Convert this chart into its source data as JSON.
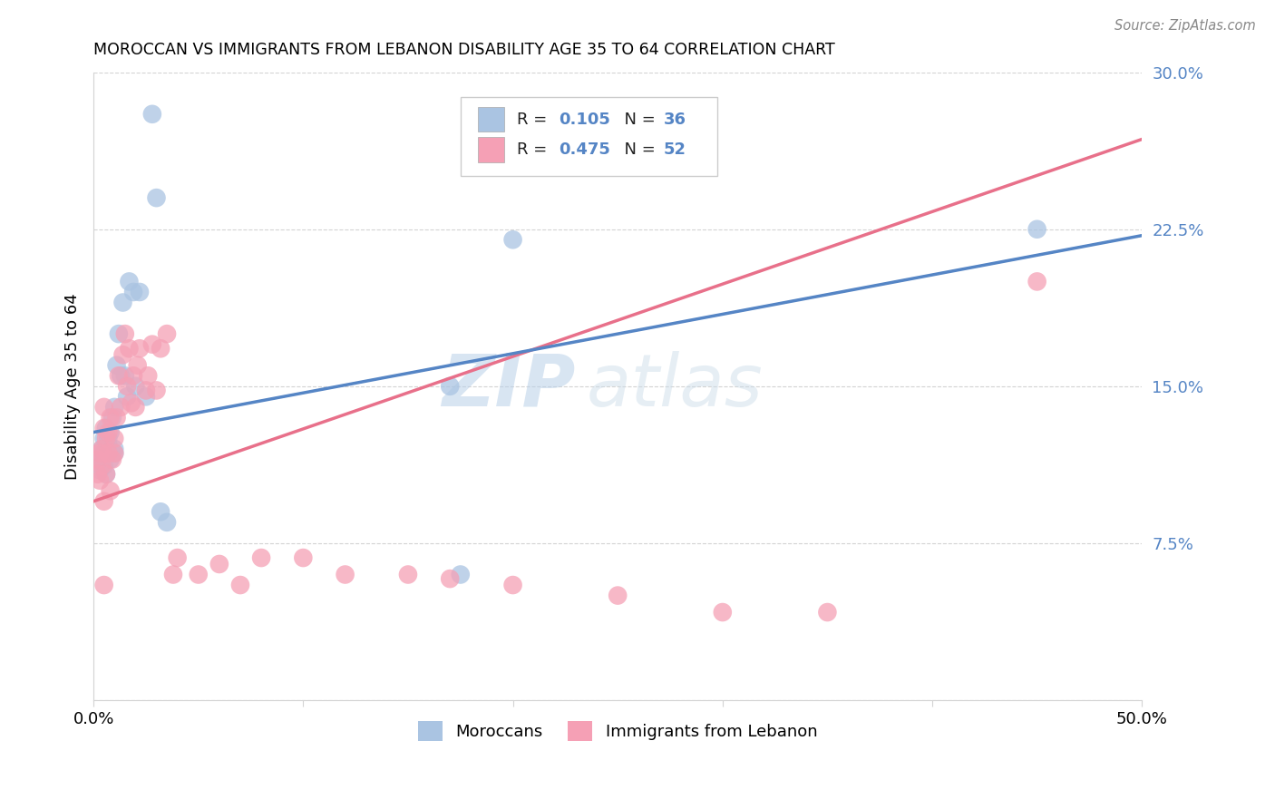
{
  "title": "MOROCCAN VS IMMIGRANTS FROM LEBANON DISABILITY AGE 35 TO 64 CORRELATION CHART",
  "source": "Source: ZipAtlas.com",
  "ylabel": "Disability Age 35 to 64",
  "xlim": [
    0.0,
    0.5
  ],
  "ylim": [
    0.0,
    0.3
  ],
  "xticks": [
    0.0,
    0.1,
    0.2,
    0.3,
    0.4,
    0.5
  ],
  "yticks": [
    0.0,
    0.075,
    0.15,
    0.225,
    0.3
  ],
  "ytick_labels": [
    "",
    "7.5%",
    "15.0%",
    "22.5%",
    "30.0%"
  ],
  "xtick_labels": [
    "0.0%",
    "",
    "",
    "",
    "",
    "50.0%"
  ],
  "blue_R": 0.105,
  "blue_N": 36,
  "pink_R": 0.475,
  "pink_N": 52,
  "blue_color": "#aac4e2",
  "pink_color": "#f5a0b5",
  "blue_line_color": "#5585c5",
  "pink_line_color": "#e8708a",
  "legend_label_blue": "Moroccans",
  "legend_label_pink": "Immigrants from Lebanon",
  "watermark_zip": "ZIP",
  "watermark_atlas": "atlas",
  "blue_line_x0": 0.0,
  "blue_line_y0": 0.128,
  "blue_line_x1": 0.5,
  "blue_line_y1": 0.222,
  "pink_line_x0": 0.0,
  "pink_line_y0": 0.095,
  "pink_line_x1": 0.5,
  "pink_line_y1": 0.268,
  "blue_x": [
    0.002,
    0.003,
    0.004,
    0.004,
    0.005,
    0.005,
    0.005,
    0.006,
    0.006,
    0.007,
    0.007,
    0.008,
    0.008,
    0.009,
    0.01,
    0.01,
    0.01,
    0.011,
    0.012,
    0.013,
    0.014,
    0.015,
    0.016,
    0.017,
    0.019,
    0.02,
    0.022,
    0.025,
    0.028,
    0.03,
    0.032,
    0.035,
    0.17,
    0.175,
    0.45,
    0.2
  ],
  "blue_y": [
    0.115,
    0.11,
    0.12,
    0.115,
    0.125,
    0.118,
    0.112,
    0.13,
    0.108,
    0.125,
    0.122,
    0.128,
    0.115,
    0.135,
    0.14,
    0.12,
    0.118,
    0.16,
    0.175,
    0.155,
    0.19,
    0.155,
    0.145,
    0.2,
    0.195,
    0.15,
    0.195,
    0.145,
    0.28,
    0.24,
    0.09,
    0.085,
    0.15,
    0.06,
    0.225,
    0.22
  ],
  "pink_x": [
    0.002,
    0.002,
    0.003,
    0.003,
    0.004,
    0.004,
    0.005,
    0.005,
    0.005,
    0.006,
    0.006,
    0.007,
    0.007,
    0.008,
    0.008,
    0.009,
    0.01,
    0.01,
    0.011,
    0.012,
    0.013,
    0.014,
    0.015,
    0.016,
    0.017,
    0.018,
    0.019,
    0.02,
    0.021,
    0.022,
    0.025,
    0.026,
    0.028,
    0.03,
    0.032,
    0.035,
    0.038,
    0.04,
    0.05,
    0.06,
    0.07,
    0.08,
    0.1,
    0.12,
    0.15,
    0.17,
    0.2,
    0.25,
    0.3,
    0.35,
    0.45,
    0.005
  ],
  "pink_y": [
    0.115,
    0.108,
    0.105,
    0.118,
    0.112,
    0.12,
    0.095,
    0.13,
    0.14,
    0.108,
    0.125,
    0.118,
    0.128,
    0.1,
    0.135,
    0.115,
    0.125,
    0.118,
    0.135,
    0.155,
    0.14,
    0.165,
    0.175,
    0.15,
    0.168,
    0.142,
    0.155,
    0.14,
    0.16,
    0.168,
    0.148,
    0.155,
    0.17,
    0.148,
    0.168,
    0.175,
    0.06,
    0.068,
    0.06,
    0.065,
    0.055,
    0.068,
    0.068,
    0.06,
    0.06,
    0.058,
    0.055,
    0.05,
    0.042,
    0.042,
    0.2,
    0.055
  ]
}
